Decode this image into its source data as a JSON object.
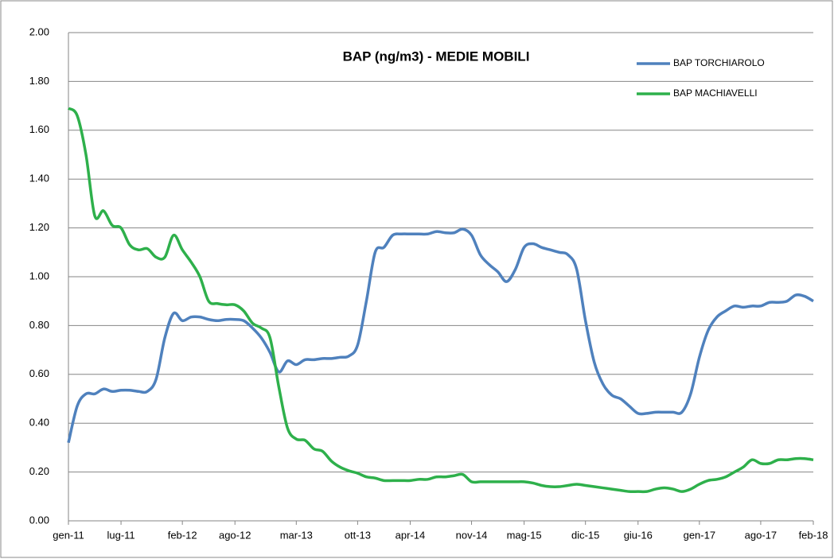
{
  "chart_data": {
    "type": "line",
    "title": "BAP (ng/m3) - MEDIE MOBILI",
    "categories": [
      "gen-11",
      null,
      null,
      null,
      null,
      null,
      "lug-11",
      null,
      null,
      null,
      null,
      null,
      null,
      "feb-12",
      null,
      null,
      null,
      null,
      null,
      "ago-12",
      null,
      null,
      null,
      null,
      null,
      null,
      "mar-13",
      null,
      null,
      null,
      null,
      null,
      null,
      "ott-13",
      null,
      null,
      null,
      null,
      null,
      "apr-14",
      null,
      null,
      null,
      null,
      null,
      null,
      "nov-14",
      null,
      null,
      null,
      null,
      null,
      "mag-15",
      null,
      null,
      null,
      null,
      null,
      null,
      "dic-15",
      null,
      null,
      null,
      null,
      null,
      "giu-16",
      null,
      null,
      null,
      null,
      null,
      null,
      "gen-17",
      null,
      null,
      null,
      null,
      null,
      null,
      "ago-17",
      null,
      null,
      null,
      null,
      null,
      "feb-18"
    ],
    "series": [
      {
        "name": "BAP TORCHIAROLO",
        "color": "#4f81bd",
        "values": [
          0.32,
          0.47,
          0.52,
          0.52,
          0.54,
          0.53,
          0.535,
          0.535,
          0.53,
          0.53,
          0.58,
          0.75,
          0.85,
          0.82,
          0.835,
          0.835,
          0.825,
          0.82,
          0.825,
          0.825,
          0.82,
          0.79,
          0.75,
          0.69,
          0.61,
          0.655,
          0.64,
          0.66,
          0.66,
          0.665,
          0.665,
          0.67,
          0.675,
          0.72,
          0.9,
          1.1,
          1.12,
          1.17,
          1.175,
          1.175,
          1.175,
          1.175,
          1.185,
          1.18,
          1.18,
          1.195,
          1.17,
          1.09,
          1.05,
          1.02,
          0.98,
          1.03,
          1.12,
          1.135,
          1.12,
          1.11,
          1.1,
          1.09,
          1.03,
          0.82,
          0.65,
          0.56,
          0.515,
          0.5,
          0.47,
          0.44,
          0.44,
          0.445,
          0.445,
          0.445,
          0.445,
          0.52,
          0.67,
          0.78,
          0.835,
          0.86,
          0.88,
          0.875,
          0.88,
          0.88,
          0.895,
          0.895,
          0.9,
          0.925,
          0.92,
          0.9
        ]
      },
      {
        "name": "BAP MACHIAVELLI",
        "color": "#2eb04b",
        "values": [
          1.69,
          1.66,
          1.5,
          1.25,
          1.27,
          1.21,
          1.2,
          1.13,
          1.11,
          1.115,
          1.08,
          1.08,
          1.17,
          1.11,
          1.06,
          1.0,
          0.9,
          0.89,
          0.885,
          0.885,
          0.86,
          0.81,
          0.79,
          0.75,
          0.55,
          0.38,
          0.335,
          0.33,
          0.295,
          0.285,
          0.245,
          0.22,
          0.205,
          0.195,
          0.18,
          0.175,
          0.165,
          0.165,
          0.165,
          0.165,
          0.17,
          0.17,
          0.18,
          0.18,
          0.185,
          0.19,
          0.16,
          0.16,
          0.16,
          0.16,
          0.16,
          0.16,
          0.16,
          0.155,
          0.145,
          0.14,
          0.14,
          0.145,
          0.15,
          0.145,
          0.14,
          0.135,
          0.13,
          0.125,
          0.12,
          0.12,
          0.12,
          0.13,
          0.135,
          0.13,
          0.12,
          0.13,
          0.15,
          0.165,
          0.17,
          0.18,
          0.2,
          0.22,
          0.25,
          0.235,
          0.235,
          0.25,
          0.25,
          0.255,
          0.255,
          0.25
        ]
      }
    ],
    "ylim": [
      0,
      2
    ],
    "yticks": [
      {
        "value": 0,
        "label": "0.00"
      },
      {
        "value": 0.2,
        "label": "0.20"
      },
      {
        "value": 0.4,
        "label": "0.40"
      },
      {
        "value": 0.6,
        "label": "0.60"
      },
      {
        "value": 0.8,
        "label": "0.80"
      },
      {
        "value": 1,
        "label": "1.00"
      },
      {
        "value": 1.2,
        "label": "1.20"
      },
      {
        "value": 1.4,
        "label": "1.40"
      },
      {
        "value": 1.6,
        "label": "1.60"
      },
      {
        "value": 1.8,
        "label": "1.80"
      },
      {
        "value": 2,
        "label": "2.00"
      }
    ],
    "grid": true,
    "legend": "top-right"
  }
}
